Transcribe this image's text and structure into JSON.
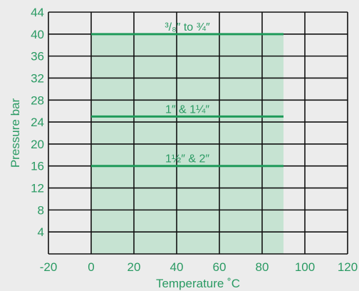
{
  "chart_data": {
    "type": "line",
    "xlabel": "Temperature ˚C",
    "ylabel": "Pressure bar",
    "xlim": [
      -20,
      120
    ],
    "ylim": [
      0,
      44
    ],
    "x_ticks": [
      -20,
      0,
      20,
      40,
      60,
      80,
      100,
      120
    ],
    "x_tick_labels": [
      "-20",
      "0",
      "20",
      "40",
      "60",
      "80",
      "100",
      "120"
    ],
    "y_ticks": [
      4,
      8,
      12,
      16,
      20,
      24,
      28,
      32,
      36,
      40,
      44
    ],
    "y_tick_labels": [
      "4",
      "8",
      "12",
      "16",
      "20",
      "24",
      "28",
      "32",
      "36",
      "40",
      "44"
    ],
    "grid": true,
    "shaded_region": {
      "x": [
        0,
        90
      ],
      "y": [
        0,
        40
      ]
    },
    "series": [
      {
        "name": "³/₈″ to ¾″",
        "x": [
          0,
          90
        ],
        "y": [
          40,
          40
        ]
      },
      {
        "name": "1″ & 1¼″",
        "x": [
          0,
          90
        ],
        "y": [
          25,
          25
        ]
      },
      {
        "name": "1½″ & 2″",
        "x": [
          0,
          90
        ],
        "y": [
          16,
          16
        ]
      }
    ],
    "colors": {
      "line": "#1f9a5a",
      "fill": "#c6e3d2",
      "grid": "#111111",
      "text": "#2a9a63"
    }
  }
}
